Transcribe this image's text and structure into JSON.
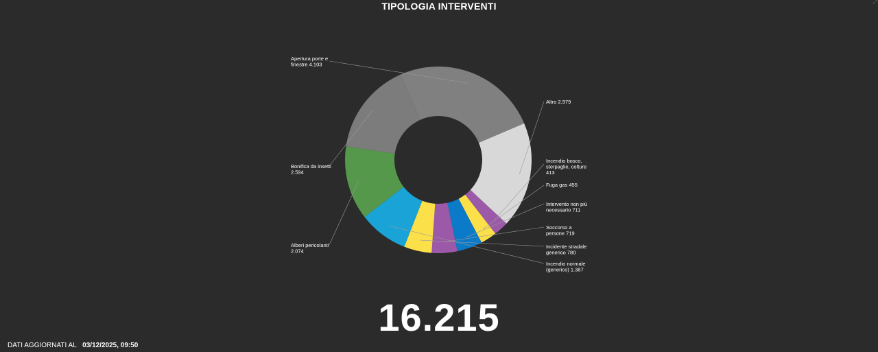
{
  "title": "TIPOLOGIA INTERVENTI",
  "total": "16.215",
  "footer": {
    "label": "DATI AGGIORNATI AL",
    "date": "03/12/2025, 09:50"
  },
  "chart_data": {
    "type": "pie",
    "donut": true,
    "title": "TIPOLOGIA INTERVENTI",
    "slices": [
      {
        "label_lines": [
          "Altro 2.979"
        ],
        "name": "Altro",
        "value": 2979,
        "color": "#d8d8d8"
      },
      {
        "label_lines": [
          "Incendio bosco,",
          "sterpaglie, colture",
          "413"
        ],
        "name": "Incendio bosco, sterpaglie, colture",
        "value": 413,
        "color": "#9b59a8"
      },
      {
        "label_lines": [
          "Fuga gas 455"
        ],
        "name": "Fuga gas",
        "value": 455,
        "color": "#fce04a"
      },
      {
        "label_lines": [
          "Intervento non più",
          "necessario 711"
        ],
        "name": "Intervento non più necessario",
        "value": 711,
        "color": "#0b7ac8"
      },
      {
        "label_lines": [
          "Soccorso a",
          "persone 719"
        ],
        "name": "Soccorso a persone",
        "value": 719,
        "color": "#9b59a8"
      },
      {
        "label_lines": [
          "Incidente stradale",
          "generico 780"
        ],
        "name": "Incidente stradale generico",
        "value": 780,
        "color": "#fce04a"
      },
      {
        "label_lines": [
          "Incendio normale",
          "(generico) 1.387"
        ],
        "name": "Incendio normale (generico)",
        "value": 1387,
        "color": "#1aa3d6"
      },
      {
        "label_lines": [
          "Alberi pericolanti",
          "2.074"
        ],
        "name": "Alberi pericolanti",
        "value": 2074,
        "color": "#55984c"
      },
      {
        "label_lines": [
          "Bonifica da insetti",
          "2.594"
        ],
        "name": "Bonifica da insetti",
        "value": 2594,
        "color": "#7c7c7c"
      },
      {
        "label_lines": [
          "Apertura porte e",
          "finestre 4.103"
        ],
        "name": "Apertura porte e finestre",
        "value": 4103,
        "color": "#808080"
      }
    ]
  }
}
